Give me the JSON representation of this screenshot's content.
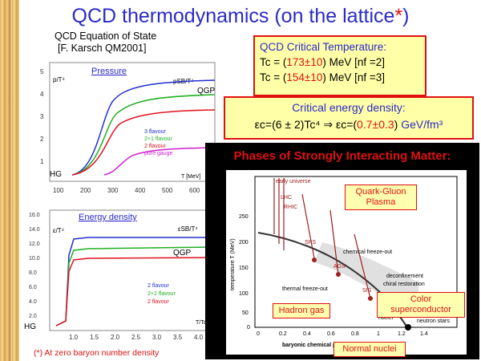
{
  "title": "QCD thermodynamics (on the lattice",
  "title_star": "*",
  "title_close": ")",
  "subtitle": {
    "line1": "QCD Equation of State",
    "line2": "[F. Karsch QM2001]"
  },
  "tc_box": {
    "label": "QCD Critical Temperature:",
    "row1_prefix": "Tc = (",
    "row1_val": "173±10",
    "row1_unit": ") MeV",
    "row1_nf": "[nf =2]",
    "row2_prefix": "Tc = (",
    "row2_val": "154±10",
    "row2_unit": ") MeV",
    "row2_nf": "[nf =3]"
  },
  "energy_box": {
    "label": "Critical energy density:",
    "formula_left": "εc=(6 ± 2)Tc⁴  ⇒  εc=(",
    "formula_val": "0.7±0.3",
    "formula_close": ")",
    "formula_unit": " GeV/fm³"
  },
  "pressure_plot": {
    "label": "Pressure",
    "ylabel": "p/T⁴",
    "sb_label": "pSB/T⁴",
    "qgp": "QGP",
    "hg": "HG",
    "xlabel": "T [MeV]",
    "y_ticks": [
      "5",
      "4",
      "3",
      "2",
      "1"
    ],
    "x_ticks": [
      "100",
      "200",
      "300",
      "400",
      "500",
      "600"
    ],
    "legend": [
      "3 flavour",
      "2+1 flavour",
      "2 flavour",
      "pure gauge"
    ],
    "legend_colors": [
      "#2030d0",
      "#20b020",
      "#e01020",
      "#d020d0"
    ]
  },
  "energy_plot": {
    "label": "Energy density",
    "ylabel": "ε/T⁴",
    "sb_label": "εSB/T⁴",
    "qgp": "QGP",
    "hg": "HG",
    "xlabel": "T/Tc",
    "y_ticks": [
      "16.0",
      "14.0",
      "12.0",
      "10.0",
      "8.0",
      "6.0",
      "4.0",
      "2.0"
    ],
    "x_ticks": [
      "1.0",
      "1.5",
      "2.0",
      "2.5",
      "3.0",
      "3.5",
      "4.0"
    ],
    "legend": [
      "2 flavour",
      "2+1 flavour",
      "2 flavour"
    ],
    "legend_colors": [
      "#2030d0",
      "#20b020",
      "#e01020"
    ]
  },
  "phases": {
    "title": "Phases of Strongly Interacting Matter:",
    "qgp_box": "Quark-Gluon Plasma",
    "hadron_box": "Hadron gas",
    "color_sc_box": "Color superconductor",
    "nuclei_box": "Normal nuclei",
    "ylabel": "temperature T (MeV)",
    "xlabel": "baryonic chemical potential μB (GeV)",
    "y_ticks": [
      "250",
      "200",
      "150",
      "100",
      "50",
      "0"
    ],
    "x_ticks": [
      "0",
      "0.2",
      "0.4",
      "0.6",
      "0.8",
      "1",
      "1.2",
      "1.4"
    ],
    "annotations": {
      "early_universe": "early universe",
      "lhc": "LHC",
      "rhic": "RHIC",
      "sps": "SPS",
      "ags": "AGS",
      "sis": "SIS",
      "chem_fo": "chemical freeze-out",
      "thermal_fo": "thermal freeze-out",
      "deconf": "deconfinement",
      "chiral": "chiral restoration",
      "atomic": "atomic",
      "nuclei": "nuclei",
      "neutron": "neutron stars"
    }
  },
  "footnote": "(*) At zero baryon number density"
}
